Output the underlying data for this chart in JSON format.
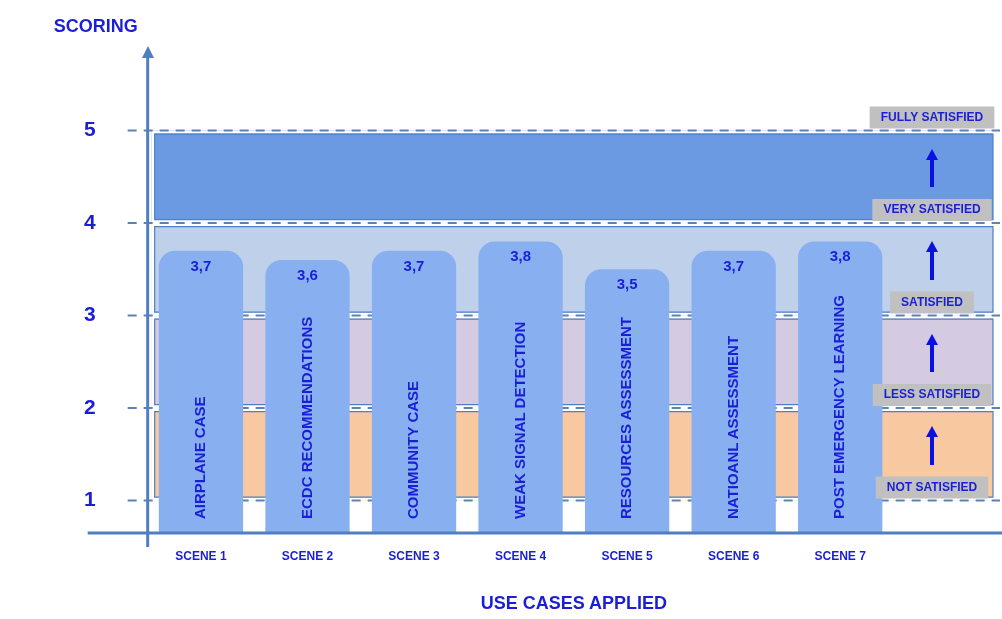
{
  "chart_data": {
    "type": "bar",
    "xlabel": "USE CASES APPLIED",
    "ylabel": "SCORING",
    "categories": [
      "SCENE 1",
      "SCENE 2",
      "SCENE 3",
      "SCENE 4",
      "SCENE 5",
      "SCENE 6",
      "SCENE 7",
      null
    ],
    "values": [
      3.7,
      3.6,
      3.7,
      3.8,
      3.5,
      3.7,
      3.8,
      null
    ],
    "value_labels": [
      "3,7",
      "3,6",
      "3,7",
      "3,8",
      "3,5",
      "3,7",
      "3,8",
      null
    ],
    "color": "#88b0f0",
    "ylim": [
      0.65,
      5.8
    ],
    "yticks": [
      1,
      2,
      3,
      4,
      5
    ],
    "ref_lines": [
      {
        "axis": "y",
        "value": 1,
        "label": "NOT SATISFIED",
        "line_style": "dashed"
      },
      {
        "axis": "y",
        "value": 2,
        "label": "LESS SATISFIED",
        "line_style": "dashed"
      },
      {
        "axis": "y",
        "value": 3,
        "label": "SATISFIED",
        "line_style": "dashed"
      },
      {
        "axis": "y",
        "value": 4,
        "label": "VERY SATISFIED",
        "line_style": "dashed"
      },
      {
        "axis": "y",
        "value": 5,
        "label": "FULLY SATISFIED",
        "line_style": "dashed"
      }
    ],
    "bands": [
      {
        "axis": "y",
        "from": 1,
        "to": 2,
        "color": "#f8c8a0"
      },
      {
        "axis": "y",
        "from": 2,
        "to": 3,
        "color": "#d4cbe2"
      },
      {
        "axis": "y",
        "from": 3,
        "to": 4,
        "color": "#bfd0ea"
      },
      {
        "axis": "y",
        "from": 4,
        "to": 5,
        "color": "#6b9ae2"
      }
    ],
    "annotations": [
      "AIRPLANE CASE",
      "ECDC RECOMMENDATIONS",
      "COMMUNITY CASE",
      "WEAK SIGNAL DETECTION",
      "RESOURCES ASSESSMENT",
      "NATIOANL ASSESSMENT",
      "POST EMERGENCY LEARNING"
    ]
  }
}
